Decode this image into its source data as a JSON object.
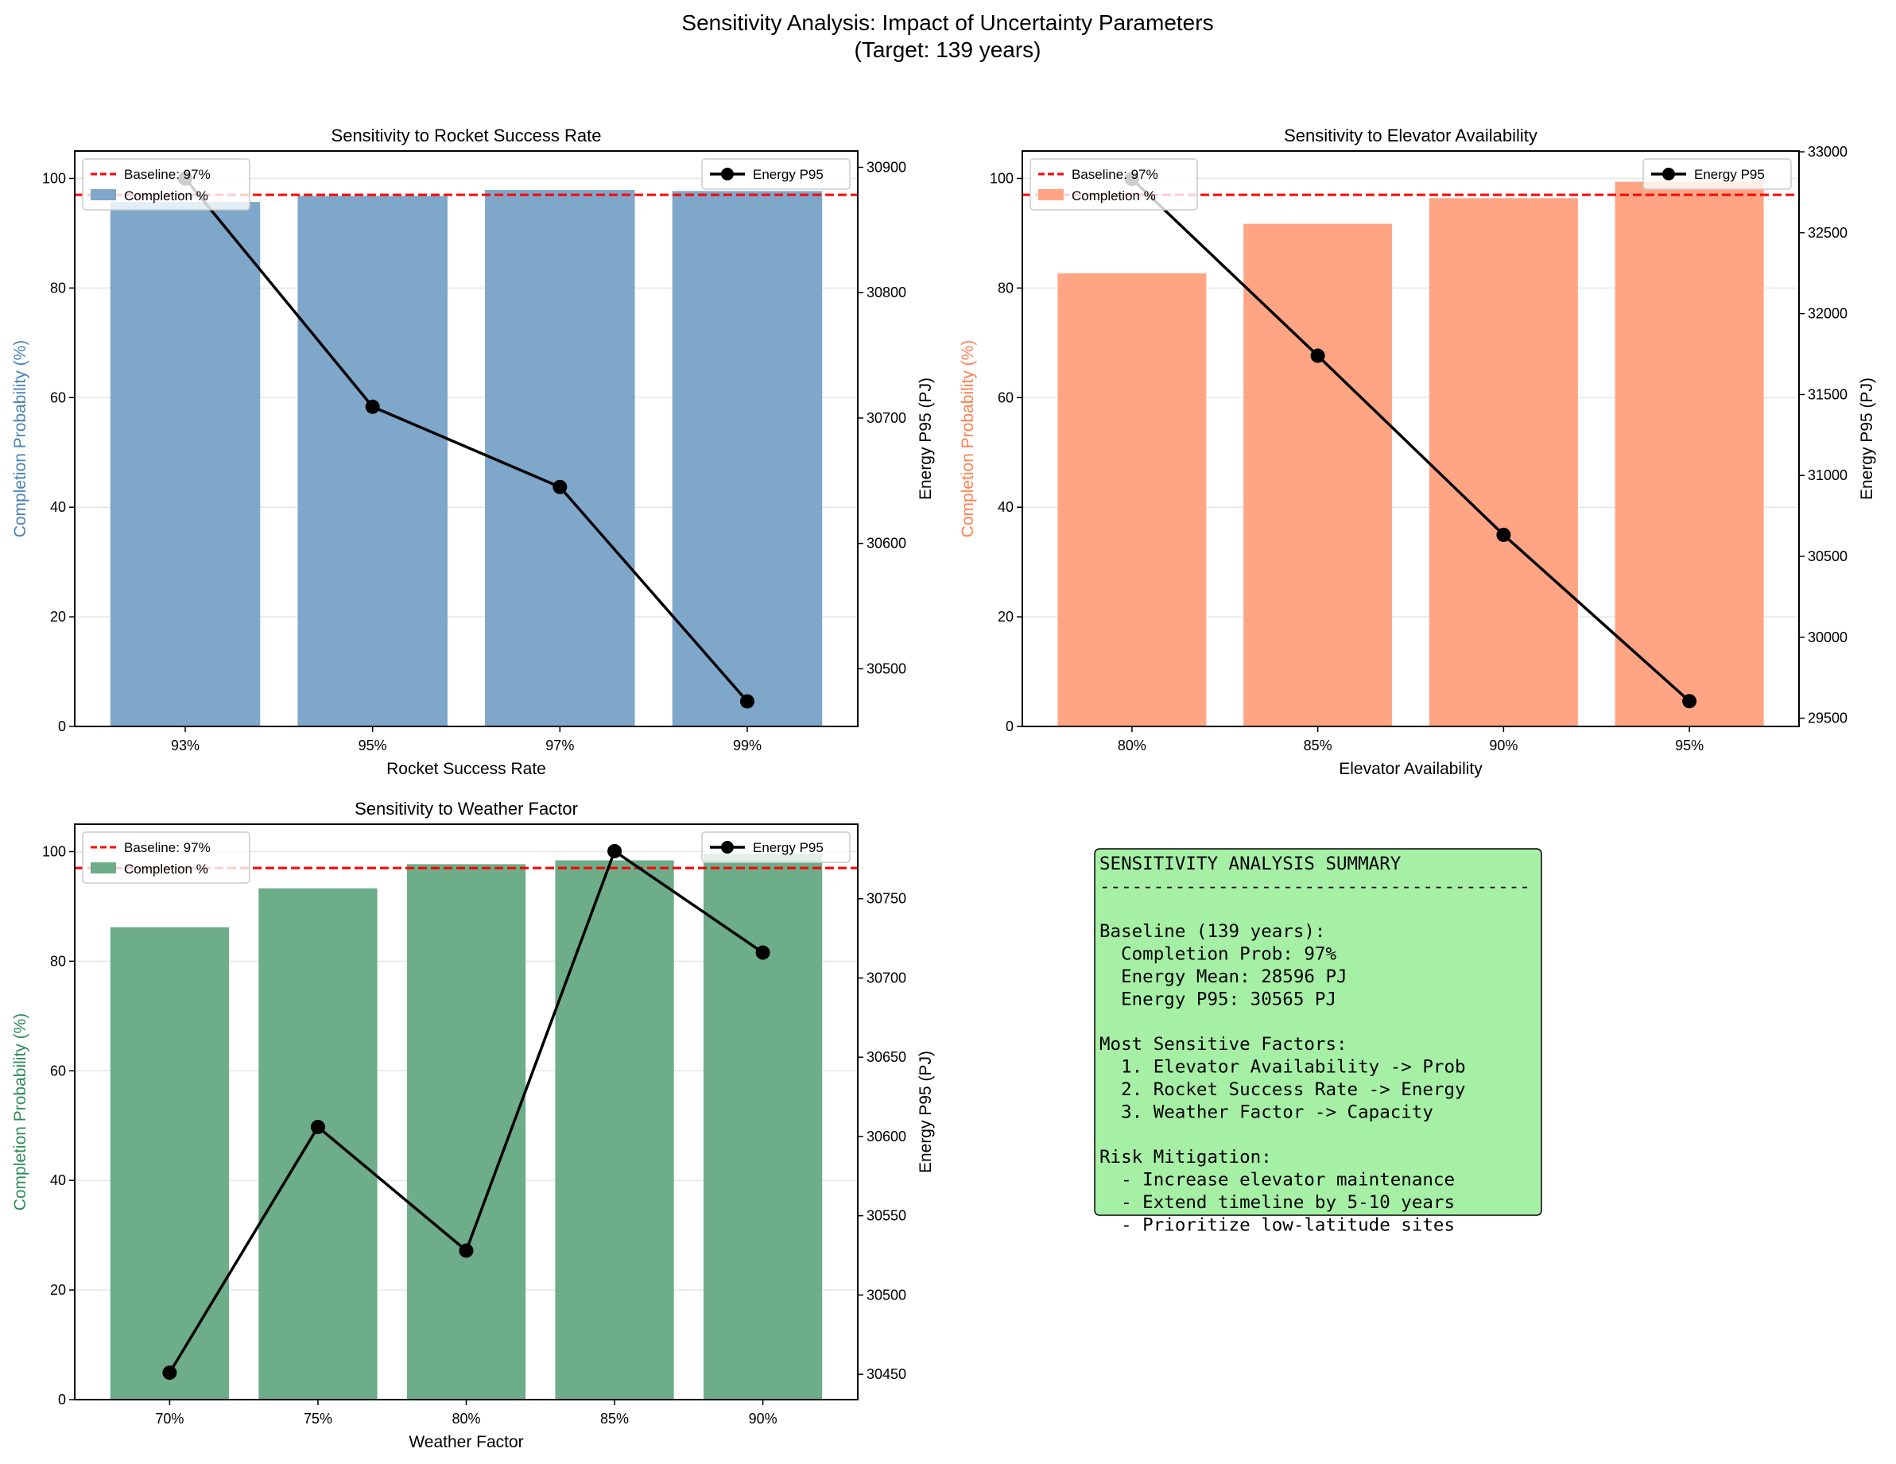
{
  "figure": {
    "title_line1": "Sensitivity Analysis: Impact of Uncertainty Parameters",
    "title_line2": "(Target: 139 years)"
  },
  "chart_data": [
    {
      "type": "bar+line",
      "title": "Sensitivity to Rocket Success Rate",
      "xlabel": "Rocket Success Rate",
      "ylabel": "Completion Probability (%)",
      "ylabel_right": "Energy P95 (PJ)",
      "categories": [
        "93%",
        "95%",
        "97%",
        "99%"
      ],
      "bar_color": "#7ea7ca",
      "ylabel_color": "#4682b4",
      "series": [
        {
          "name": "Completion %",
          "kind": "bar",
          "axis": "left",
          "values": [
            95.7,
            96.8,
            97.9,
            97.7
          ]
        },
        {
          "name": "Energy P95",
          "kind": "line",
          "axis": "right",
          "values": [
            30891,
            30709,
            30645,
            30474
          ]
        }
      ],
      "baseline": {
        "name": "Baseline: 97%",
        "value": 97,
        "color": "#ff0000"
      },
      "ylim": [
        0,
        105
      ],
      "yticks": [
        0,
        20,
        40,
        60,
        80,
        100
      ],
      "ylim_right": [
        30454,
        30913
      ],
      "yticks_right": [
        30500,
        30600,
        30700,
        30800,
        30900
      ],
      "grid": "y",
      "legend_left": "top-left",
      "legend_right": "top-right"
    },
    {
      "type": "bar+line",
      "title": "Sensitivity to Elevator Availability",
      "xlabel": "Elevator Availability",
      "ylabel": "Completion Probability (%)",
      "ylabel_right": "Energy P95 (PJ)",
      "categories": [
        "80%",
        "85%",
        "90%",
        "95%"
      ],
      "bar_color": "#ffa584",
      "ylabel_color": "#ff7f50",
      "series": [
        {
          "name": "Completion %",
          "kind": "bar",
          "axis": "left",
          "values": [
            82.7,
            91.7,
            96.4,
            99.4
          ]
        },
        {
          "name": "Energy P95",
          "kind": "line",
          "axis": "right",
          "values": [
            32832,
            31740,
            30633,
            29605
          ]
        }
      ],
      "baseline": {
        "name": "Baseline: 97%",
        "value": 97,
        "color": "#ff0000"
      },
      "ylim": [
        0,
        105
      ],
      "yticks": [
        0,
        20,
        40,
        60,
        80,
        100
      ],
      "ylim_right": [
        29449,
        33005
      ],
      "yticks_right": [
        29500,
        30000,
        30500,
        31000,
        31500,
        32000,
        32500,
        33000
      ],
      "grid": "y",
      "legend_left": "top-left",
      "legend_right": "top-right"
    },
    {
      "type": "bar+line",
      "title": "Sensitivity to Weather Factor",
      "xlabel": "Weather Factor",
      "ylabel": "Completion Probability (%)",
      "ylabel_right": "Energy P95 (PJ)",
      "categories": [
        "70%",
        "75%",
        "80%",
        "85%",
        "90%"
      ],
      "bar_color": "#6dad89",
      "ylabel_color": "#2e8b57",
      "series": [
        {
          "name": "Completion %",
          "kind": "bar",
          "axis": "left",
          "values": [
            86.2,
            93.3,
            97.7,
            98.4,
            99.6
          ]
        },
        {
          "name": "Energy P95",
          "kind": "line",
          "axis": "right",
          "values": [
            30451,
            30606,
            30528,
            30780,
            30716
          ]
        }
      ],
      "baseline": {
        "name": "Baseline: 97%",
        "value": 97,
        "color": "#ff0000"
      },
      "ylim": [
        0,
        105
      ],
      "yticks": [
        0,
        20,
        40,
        60,
        80,
        100
      ],
      "ylim_right": [
        30434,
        30797
      ],
      "yticks_right": [
        30450,
        30500,
        30550,
        30600,
        30650,
        30700,
        30750
      ],
      "grid": "y",
      "legend_left": "top-left",
      "legend_right": "top-right"
    }
  ],
  "summary": {
    "background": "#a6f0a6",
    "lines": [
      "SENSITIVITY ANALYSIS SUMMARY",
      "----------------------------------------",
      "",
      "Baseline (139 years):",
      "  Completion Prob: 97%",
      "  Energy Mean: 28596 PJ",
      "  Energy P95: 30565 PJ",
      "",
      "Most Sensitive Factors:",
      "  1. Elevator Availability -> Prob",
      "  2. Rocket Success Rate -> Energy",
      "  3. Weather Factor -> Capacity",
      "",
      "Risk Mitigation:",
      "  - Increase elevator maintenance",
      "  - Extend timeline by 5-10 years",
      "  - Prioritize low-latitude sites"
    ]
  }
}
